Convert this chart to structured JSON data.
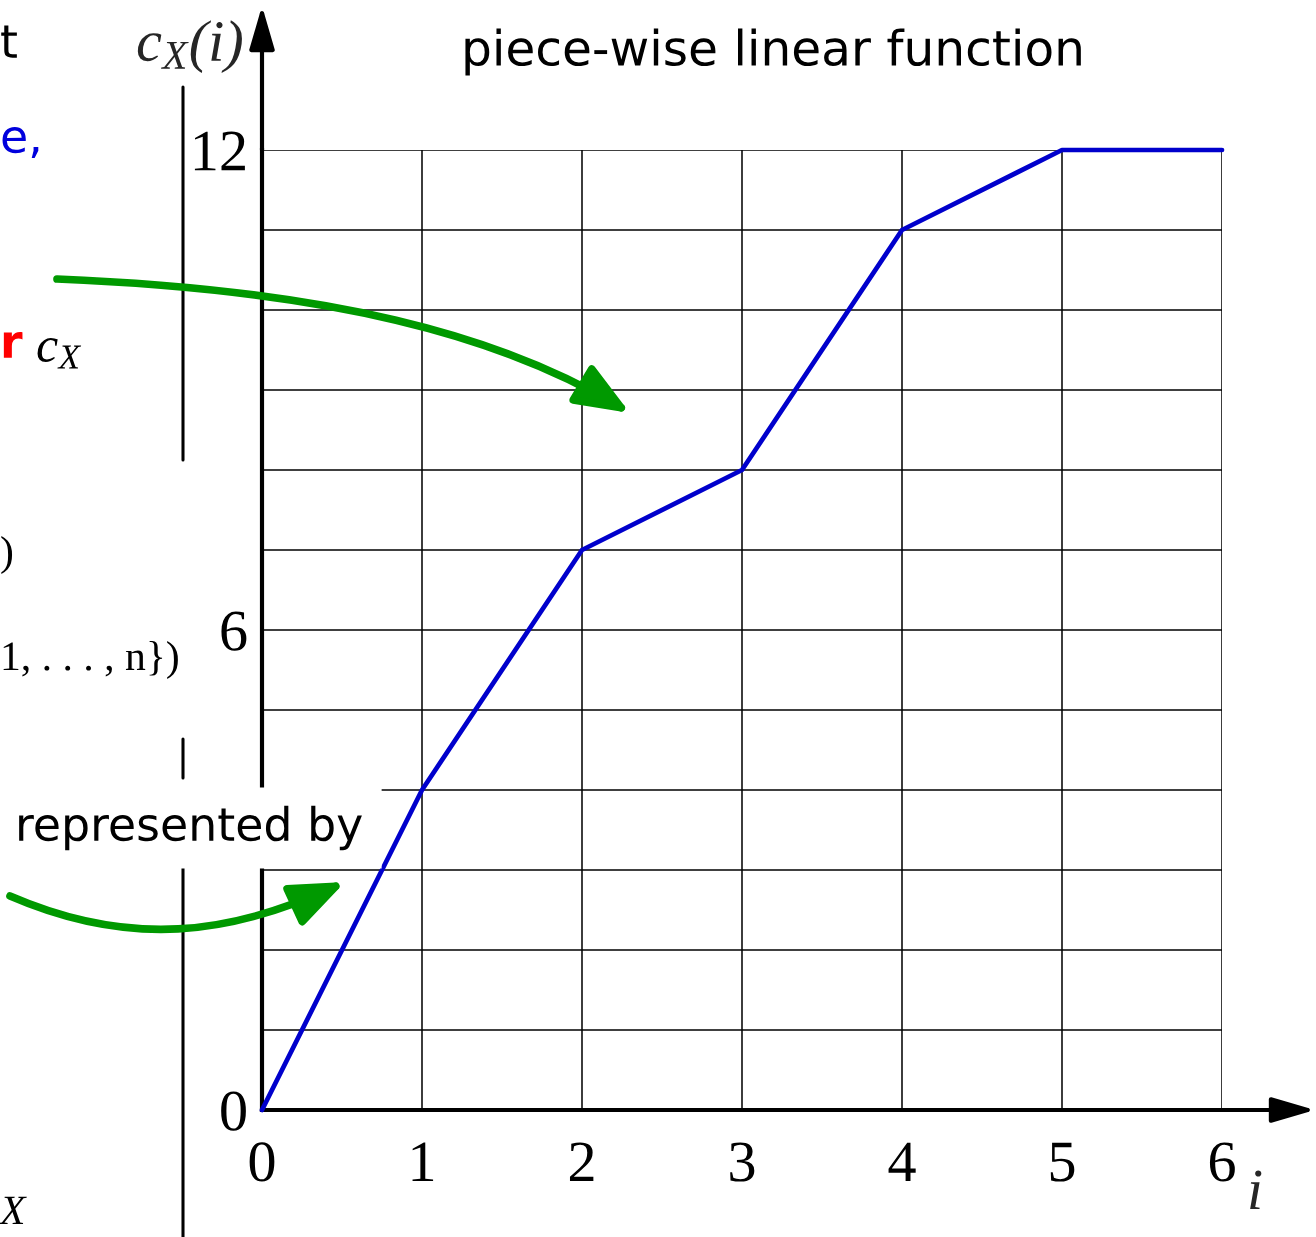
{
  "chart_data": {
    "type": "line",
    "title": "piece-wise linear function",
    "xlabel": "i",
    "ylabel": "c$_{X}$(i)",
    "x": [
      0,
      1,
      2,
      3,
      4,
      5,
      6
    ],
    "series": [
      {
        "color": "#0000cc",
        "values": [
          0,
          4,
          7,
          8,
          11,
          12,
          12
        ]
      }
    ],
    "xlim": [
      0,
      6
    ],
    "ylim": [
      0,
      12
    ],
    "xticks": [
      0,
      1,
      2,
      3,
      4,
      5,
      6
    ],
    "yticks": [
      0,
      {
        "value": 1,
        "label": null
      },
      {
        "value": 2,
        "label": null
      },
      {
        "value": 3,
        "label": null
      },
      {
        "value": 4,
        "label": null
      },
      {
        "value": 5,
        "label": null
      },
      6,
      {
        "value": 7,
        "label": null
      },
      {
        "value": 8,
        "label": null
      },
      {
        "value": 9,
        "label": null
      },
      {
        "value": 10,
        "label": null
      },
      {
        "value": 11,
        "label": null
      },
      12
    ],
    "grid": true,
    "annotations": [
      "t",
      "e,",
      "r",
      "c$_{X}$",
      ")",
      "1, . . . , n})",
      "represented by",
      "X"
    ]
  }
}
